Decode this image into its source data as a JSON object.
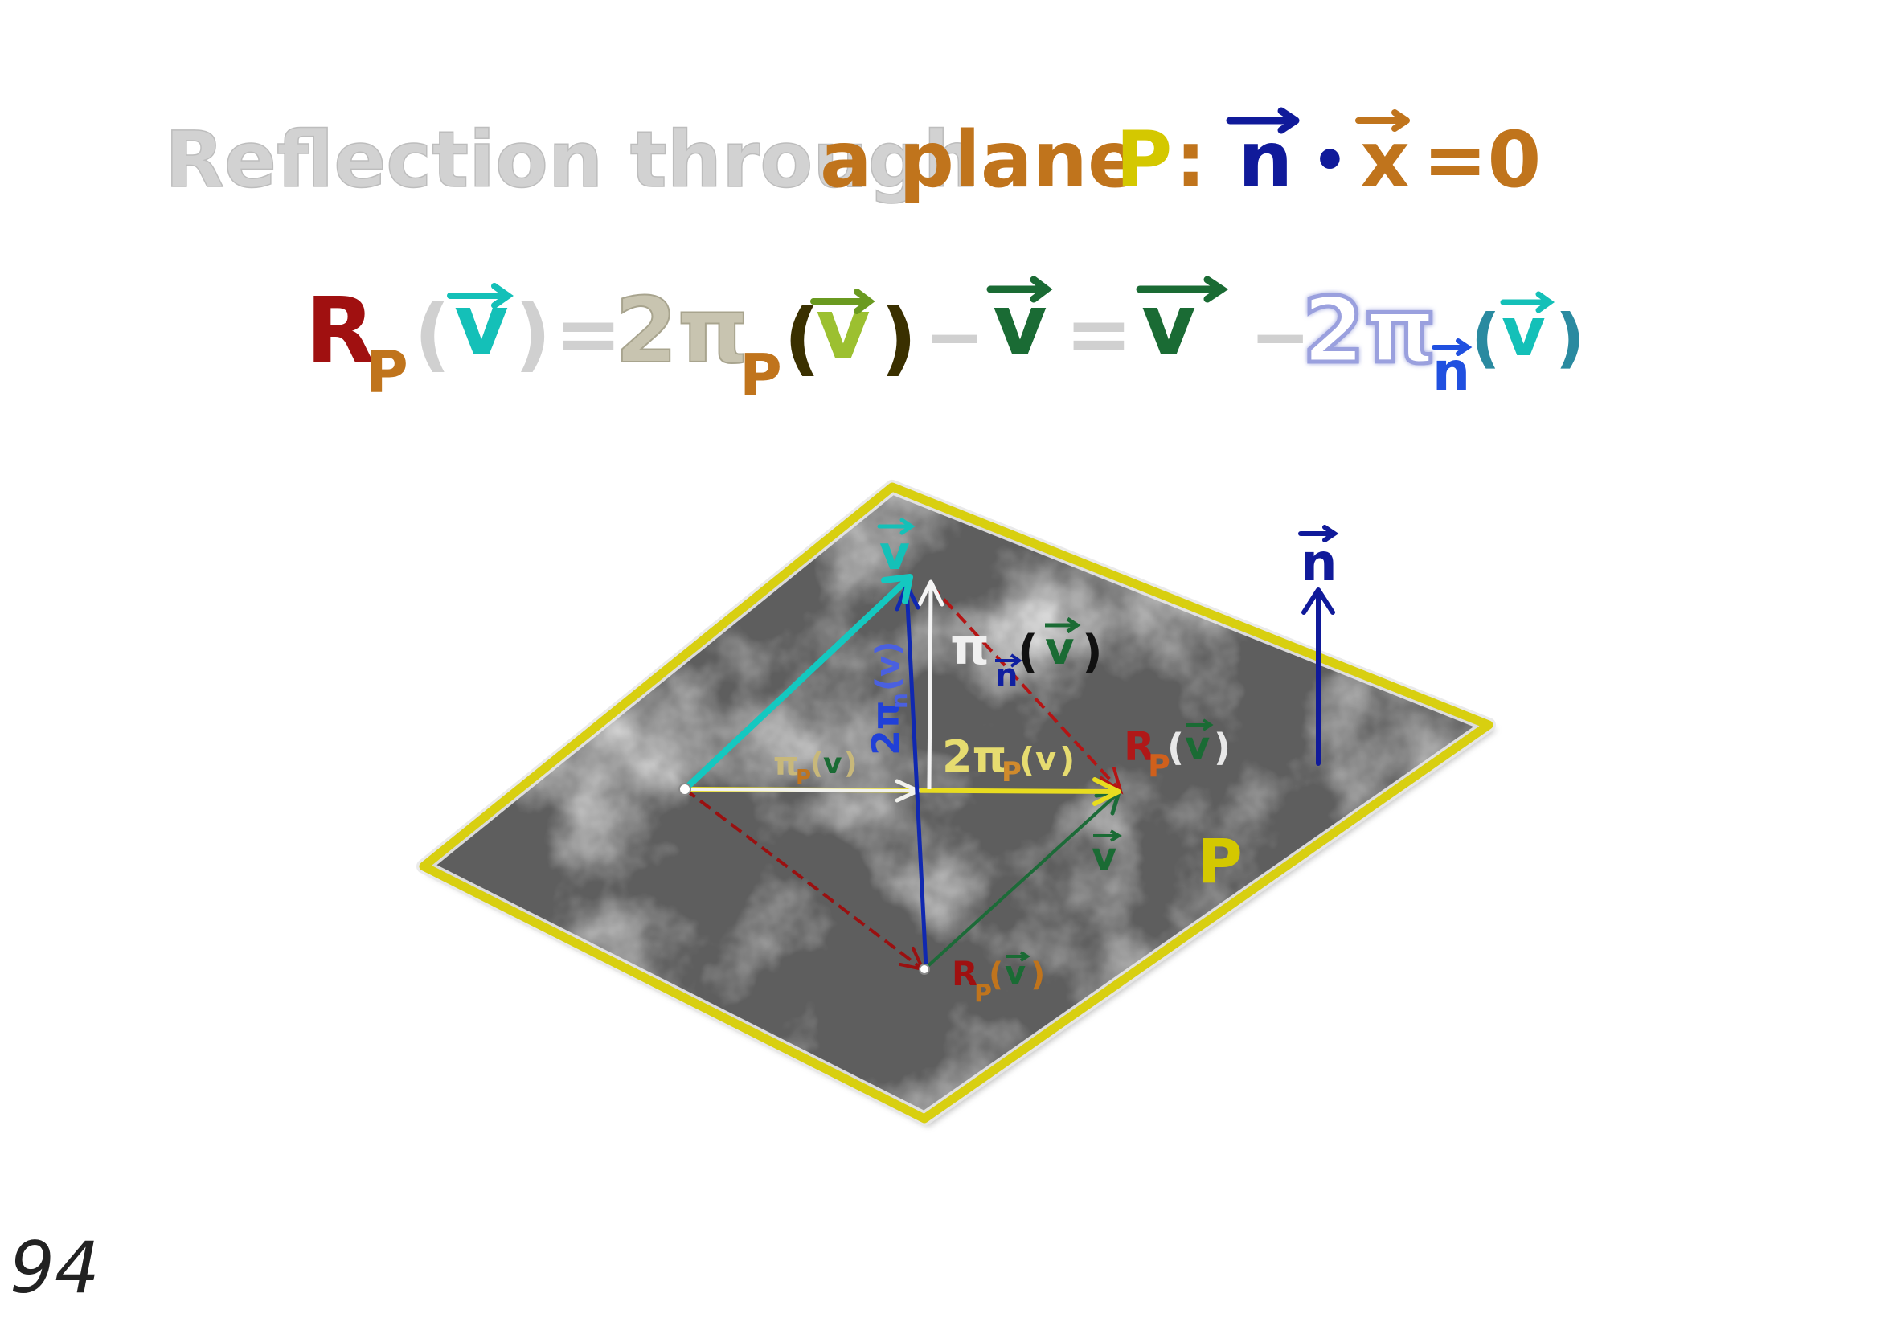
{
  "title": {
    "t1": "Reflection through",
    "t2": "a plane",
    "p": "P",
    "colon": ":",
    "n": "n",
    "dot": "•",
    "x": "x",
    "eq0": "=0"
  },
  "formula": {
    "R": "R",
    "subP": "P",
    "lp": "(",
    "v": "v",
    "rp": ")",
    "eq": "=",
    "two_pi": "2π",
    "minus": "−",
    "n": "n"
  },
  "labels": {
    "v": "v",
    "pi": "π",
    "R": "R",
    "P": "P",
    "n": "n",
    "two_pi": "2π",
    "lp": "(",
    "rp": ")",
    "plane": "P"
  },
  "page_number": "94",
  "colors": {
    "title_gray": "#d2d2d2",
    "orange": "#c0741c",
    "yellow": "#d4c800",
    "navy": "#101a9a",
    "red": "#a01010",
    "teal": "#10b8b0",
    "green": "#1a6b34",
    "gray_light": "#cfcfcf",
    "gray_warm": "#c8c4b0",
    "lavender": "#b8bce4",
    "plane_edge": "#d8cf10"
  }
}
